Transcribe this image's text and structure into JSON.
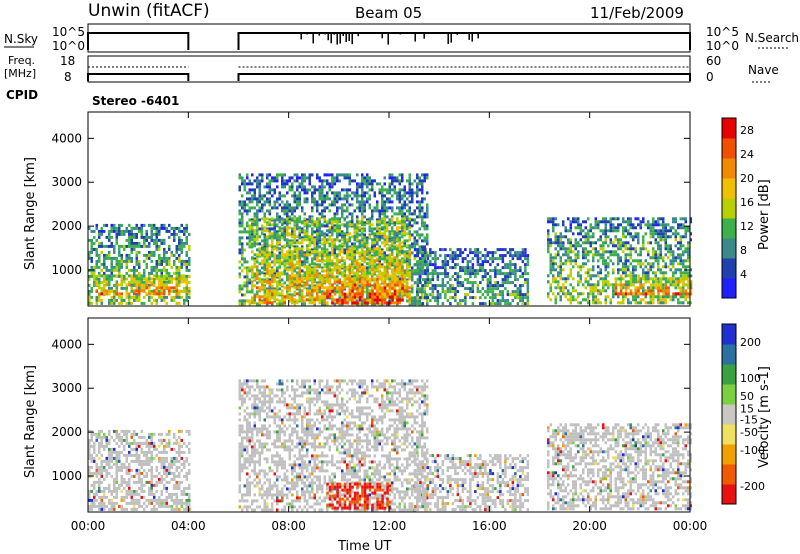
{
  "header": {
    "station": "Unwin (fitACF)",
    "beam": "Beam 05",
    "date": "11/Feb/2009"
  },
  "strips": {
    "nsky_label": "N.Sky",
    "nsky_ticks": [
      "10^5",
      "10^0"
    ],
    "nsearch_label": "N.Search",
    "freq_label": "Freq.",
    "freq_unit": "[MHz]",
    "freq_ticks": [
      "18",
      "8"
    ],
    "nave_label": "Nave",
    "nave_ticks": [
      "60",
      "0"
    ],
    "cpid_label": "CPID",
    "cpid_value": "Stereo -6401"
  },
  "colors": {
    "power": [
      "#1f1fff",
      "#2040b0",
      "#3a8a8a",
      "#3cb04a",
      "#b8d000",
      "#f0c000",
      "#f08a00",
      "#f05000",
      "#e80000"
    ],
    "velocity": [
      "#e81010",
      "#f05a00",
      "#f0a000",
      "#f0e060",
      "#c8c8c0",
      "#7ad040",
      "#3aa040",
      "#2a70a0",
      "#2030d0"
    ],
    "ground_scatter": "#c0c0c0"
  },
  "chart_data": [
    {
      "type": "heatmap",
      "parameter": "Power",
      "ylabel": "Slant Range [km]",
      "xlabel": "Time UT",
      "x_ticks": [
        "00:00",
        "04:00",
        "08:00",
        "12:00",
        "16:00",
        "20:00",
        "00:00"
      ],
      "y_ticks": [
        1000,
        2000,
        3000,
        4000
      ],
      "xlim_hours": [
        0,
        24
      ],
      "ylim_km": [
        180,
        4600
      ],
      "colorbar": {
        "label": "Power [dB]",
        "ticks": [
          4,
          8,
          12,
          16,
          20,
          24,
          28
        ],
        "range": [
          0,
          30
        ]
      },
      "data_gaps_hours": [
        [
          4.0,
          6.0
        ]
      ],
      "regions": [
        {
          "t": [
            0.0,
            4.0
          ],
          "r": [
            250,
            2050
          ],
          "level": 0.45
        },
        {
          "t": [
            0.3,
            4.0
          ],
          "r": [
            450,
            900
          ],
          "level": 0.8
        },
        {
          "t": [
            6.0,
            13.5
          ],
          "r": [
            250,
            3200
          ],
          "level": 0.4
        },
        {
          "t": [
            6.5,
            12.8
          ],
          "r": [
            250,
            2200
          ],
          "level": 0.7
        },
        {
          "t": [
            9.5,
            12.5
          ],
          "r": [
            250,
            1100
          ],
          "level": 0.95
        },
        {
          "t": [
            13.0,
            17.5
          ],
          "r": [
            250,
            1500
          ],
          "level": 0.35
        },
        {
          "t": [
            18.3,
            24.0
          ],
          "r": [
            250,
            2200
          ],
          "level": 0.45
        },
        {
          "t": [
            21.0,
            24.0
          ],
          "r": [
            450,
            900
          ],
          "level": 0.8
        }
      ]
    },
    {
      "type": "heatmap",
      "parameter": "Velocity",
      "ylabel": "Slant Range [km]",
      "xlabel": "Time UT",
      "x_ticks": [
        "00:00",
        "04:00",
        "08:00",
        "12:00",
        "16:00",
        "20:00",
        "00:00"
      ],
      "y_ticks": [
        1000,
        2000,
        3000,
        4000
      ],
      "xlim_hours": [
        0,
        24
      ],
      "ylim_km": [
        180,
        4600
      ],
      "colorbar": {
        "label": "Velocity [m s-1]",
        "ticks": [
          -200,
          -100,
          -50,
          -15,
          15,
          50,
          100,
          200
        ],
        "range": [
          -250,
          250
        ]
      },
      "data_gaps_hours": [
        [
          4.0,
          6.0
        ]
      ],
      "regions": [
        {
          "t": [
            0.0,
            4.0
          ],
          "r": [
            250,
            2050
          ],
          "gs": true
        },
        {
          "t": [
            6.0,
            13.5
          ],
          "r": [
            250,
            3200
          ],
          "gs": true
        },
        {
          "t": [
            9.5,
            12.0
          ],
          "r": [
            250,
            850
          ],
          "vel": -180
        },
        {
          "t": [
            13.0,
            17.5
          ],
          "r": [
            250,
            1500
          ],
          "gs": true
        },
        {
          "t": [
            18.3,
            24.0
          ],
          "r": [
            250,
            2200
          ],
          "gs": true
        }
      ]
    }
  ]
}
